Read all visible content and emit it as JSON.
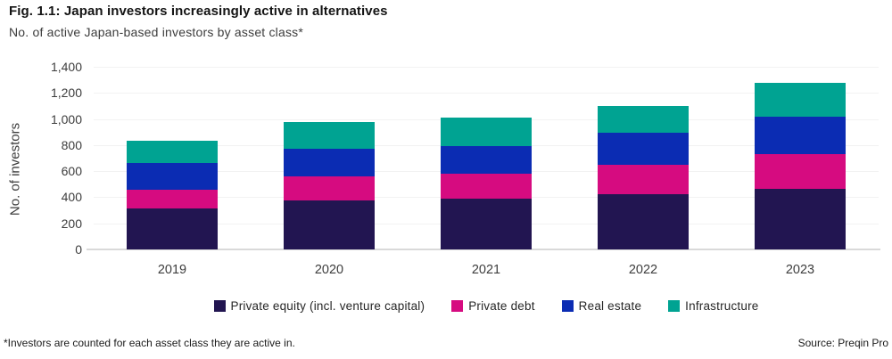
{
  "header": {
    "title": "Fig. 1.1: Japan investors increasingly active in alternatives",
    "subtitle": "No. of active Japan-based investors by asset class*"
  },
  "chart_data": {
    "type": "bar",
    "stacked": true,
    "title": "Fig. 1.1: Japan investors increasingly active in alternatives",
    "subtitle": "No. of active Japan-based investors by asset class*",
    "categories": [
      "2019",
      "2020",
      "2021",
      "2022",
      "2023"
    ],
    "series": [
      {
        "name": "Private equity (incl. venture capital)",
        "color": "#221551",
        "values": [
          315,
          375,
          390,
          425,
          465
        ]
      },
      {
        "name": "Private debt",
        "color": "#d60b80",
        "values": [
          145,
          185,
          190,
          225,
          265
        ]
      },
      {
        "name": "Real estate",
        "color": "#0b2cb3",
        "values": [
          205,
          215,
          215,
          245,
          290
        ]
      },
      {
        "name": "Infrastructure",
        "color": "#00a392",
        "values": [
          170,
          200,
          215,
          205,
          260
        ]
      }
    ],
    "totals": [
      835,
      975,
      1010,
      1100,
      1280
    ],
    "xlabel": "",
    "ylabel": "No. of investors",
    "ylim": [
      0,
      1400
    ],
    "yticks": [
      {
        "value": 0,
        "label": "0"
      },
      {
        "value": 200,
        "label": "200"
      },
      {
        "value": 400,
        "label": "400"
      },
      {
        "value": 600,
        "label": "600"
      },
      {
        "value": 800,
        "label": "800"
      },
      {
        "value": 1000,
        "label": "1,000"
      },
      {
        "value": 1200,
        "label": "1,200"
      },
      {
        "value": 1400,
        "label": "1,400"
      }
    ],
    "grid": true,
    "legend_position": "bottom"
  },
  "colors": {
    "private_equity": "#221551",
    "private_debt": "#d60b80",
    "real_estate": "#0b2cb3",
    "infrastructure": "#00a392",
    "gridline": "#f2f2f2",
    "axis_line": "#d9d9d9",
    "axis_text": "#3d3d3d"
  },
  "footer": {
    "note": "*Investors are counted for each asset class they are active in.",
    "source": "Source: Preqin Pro"
  }
}
